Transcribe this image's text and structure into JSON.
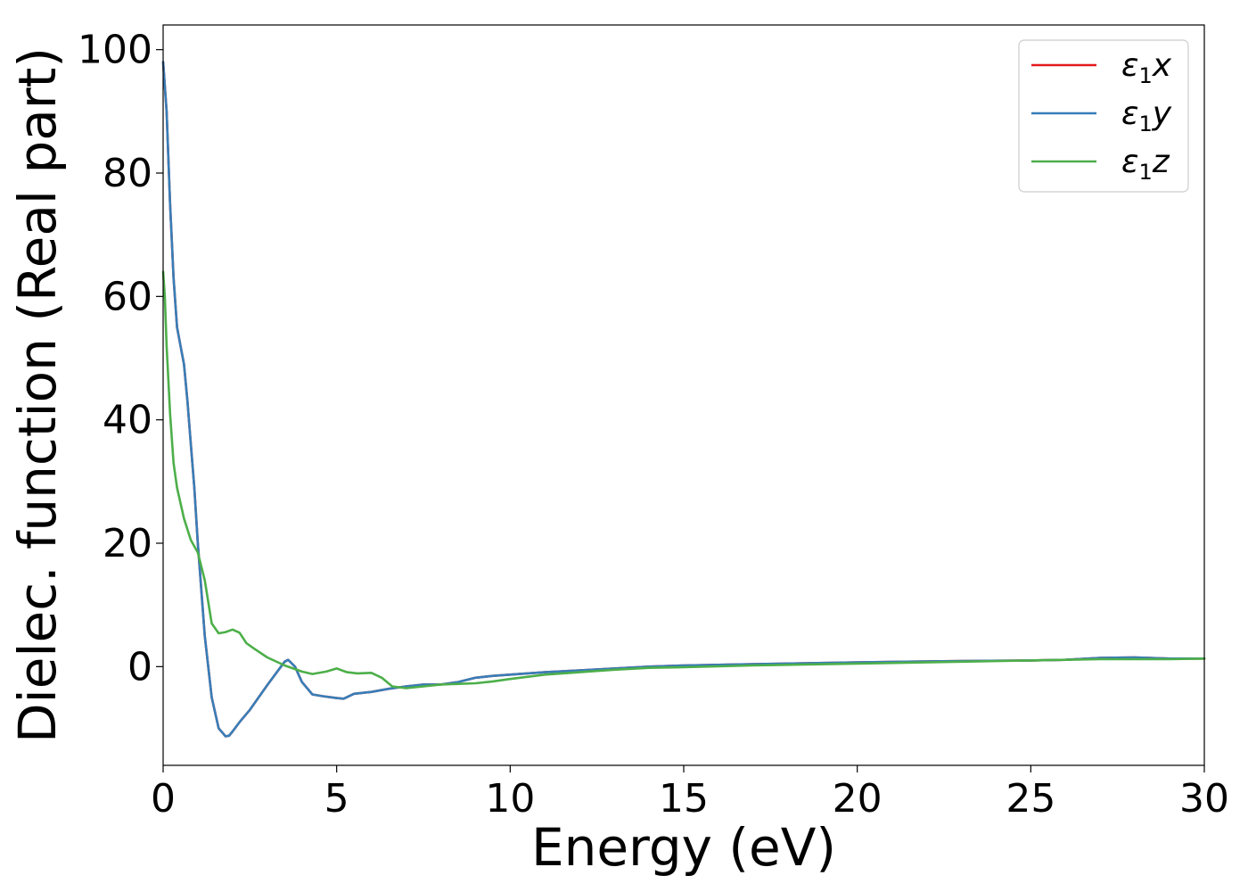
{
  "chart_data": {
    "type": "line",
    "xlabel": "Energy (eV)",
    "ylabel": "Dielec. function (Real part)",
    "xlim": [
      0,
      30
    ],
    "ylim": [
      -16,
      104
    ],
    "xticks": [
      0,
      5,
      10,
      15,
      20,
      25,
      30
    ],
    "yticks": [
      0,
      20,
      40,
      60,
      80,
      100
    ],
    "xtick_labels": [
      "0",
      "5",
      "10",
      "15",
      "20",
      "25",
      "30"
    ],
    "ytick_labels": [
      "0",
      "20",
      "40",
      "60",
      "80",
      "100"
    ],
    "grid": false,
    "legend_position": "top-right",
    "series": [
      {
        "name": "ε₁x",
        "legend_base": "ε",
        "legend_sub": "1",
        "legend_var": "x",
        "color": "#e41a1c",
        "x": [
          0,
          0.1,
          0.2,
          0.3,
          0.4,
          0.5,
          0.6,
          0.7,
          0.8,
          0.9,
          1.0,
          1.2,
          1.4,
          1.6,
          1.8,
          1.9,
          2.0,
          2.2,
          2.5,
          3.0,
          3.5,
          3.6,
          3.8,
          4.0,
          4.3,
          4.6,
          5.0,
          5.2,
          5.5,
          6.0,
          6.5,
          7.0,
          7.5,
          8.0,
          8.5,
          9.0,
          9.5,
          10,
          11,
          12,
          13,
          14,
          15,
          17,
          20,
          23,
          25,
          26,
          27,
          28,
          29,
          30
        ],
        "y": [
          98,
          90,
          75,
          63,
          55,
          52,
          49,
          43,
          36,
          29,
          20,
          5,
          -5,
          -10,
          -11.3,
          -11.2,
          -10.5,
          -9,
          -7,
          -3,
          0.8,
          1.1,
          0,
          -2.5,
          -4.5,
          -4.8,
          -5.1,
          -5.2,
          -4.4,
          -4.1,
          -3.6,
          -3.2,
          -2.9,
          -2.9,
          -2.5,
          -1.8,
          -1.5,
          -1.3,
          -0.9,
          -0.6,
          -0.3,
          0,
          0.2,
          0.4,
          0.7,
          0.9,
          1.0,
          1.1,
          1.4,
          1.5,
          1.3,
          1.3
        ]
      },
      {
        "name": "ε₁y",
        "legend_base": "ε",
        "legend_sub": "1",
        "legend_var": "y",
        "color": "#377eb8",
        "x": [
          0,
          0.1,
          0.2,
          0.3,
          0.4,
          0.5,
          0.6,
          0.7,
          0.8,
          0.9,
          1.0,
          1.2,
          1.4,
          1.6,
          1.8,
          1.9,
          2.0,
          2.2,
          2.5,
          3.0,
          3.5,
          3.6,
          3.8,
          4.0,
          4.3,
          4.6,
          5.0,
          5.2,
          5.5,
          6.0,
          6.5,
          7.0,
          7.5,
          8.0,
          8.5,
          9.0,
          9.5,
          10,
          11,
          12,
          13,
          14,
          15,
          17,
          20,
          23,
          25,
          26,
          27,
          28,
          29,
          30
        ],
        "y": [
          98,
          90,
          75,
          63,
          55,
          52,
          49,
          43,
          36,
          29,
          20,
          5,
          -5,
          -10,
          -11.3,
          -11.2,
          -10.5,
          -9,
          -7,
          -3,
          0.8,
          1.1,
          0,
          -2.5,
          -4.5,
          -4.8,
          -5.1,
          -5.2,
          -4.4,
          -4.1,
          -3.6,
          -3.2,
          -2.9,
          -2.9,
          -2.5,
          -1.8,
          -1.5,
          -1.3,
          -0.9,
          -0.6,
          -0.3,
          0,
          0.2,
          0.4,
          0.7,
          0.9,
          1.0,
          1.1,
          1.4,
          1.5,
          1.3,
          1.3
        ]
      },
      {
        "name": "ε₁z",
        "legend_base": "ε",
        "legend_sub": "1",
        "legend_var": "z",
        "color": "#4daf4a",
        "x": [
          0,
          0.05,
          0.1,
          0.2,
          0.3,
          0.4,
          0.6,
          0.8,
          1.0,
          1.2,
          1.4,
          1.6,
          1.8,
          2.0,
          2.2,
          2.4,
          2.6,
          3.0,
          3.5,
          4.0,
          4.3,
          4.7,
          5.0,
          5.3,
          5.6,
          6.0,
          6.3,
          6.6,
          7.0,
          7.5,
          8.0,
          8.5,
          9.0,
          9.5,
          10,
          11,
          12,
          13,
          14,
          15,
          17,
          20,
          23,
          25,
          26,
          27,
          28,
          29,
          30
        ],
        "y": [
          64,
          60,
          52,
          41,
          33,
          29,
          24,
          20.5,
          18.5,
          14,
          7,
          5.4,
          5.6,
          6,
          5.5,
          3.8,
          3,
          1.5,
          0.2,
          -0.8,
          -1.2,
          -0.8,
          -0.3,
          -0.9,
          -1.1,
          -1.0,
          -1.8,
          -3.2,
          -3.5,
          -3.2,
          -2.9,
          -2.8,
          -2.7,
          -2.4,
          -2.0,
          -1.3,
          -0.9,
          -0.5,
          -0.2,
          -0.1,
          0.2,
          0.5,
          0.8,
          1.0,
          1.1,
          1.2,
          1.2,
          1.2,
          1.3
        ]
      }
    ]
  }
}
